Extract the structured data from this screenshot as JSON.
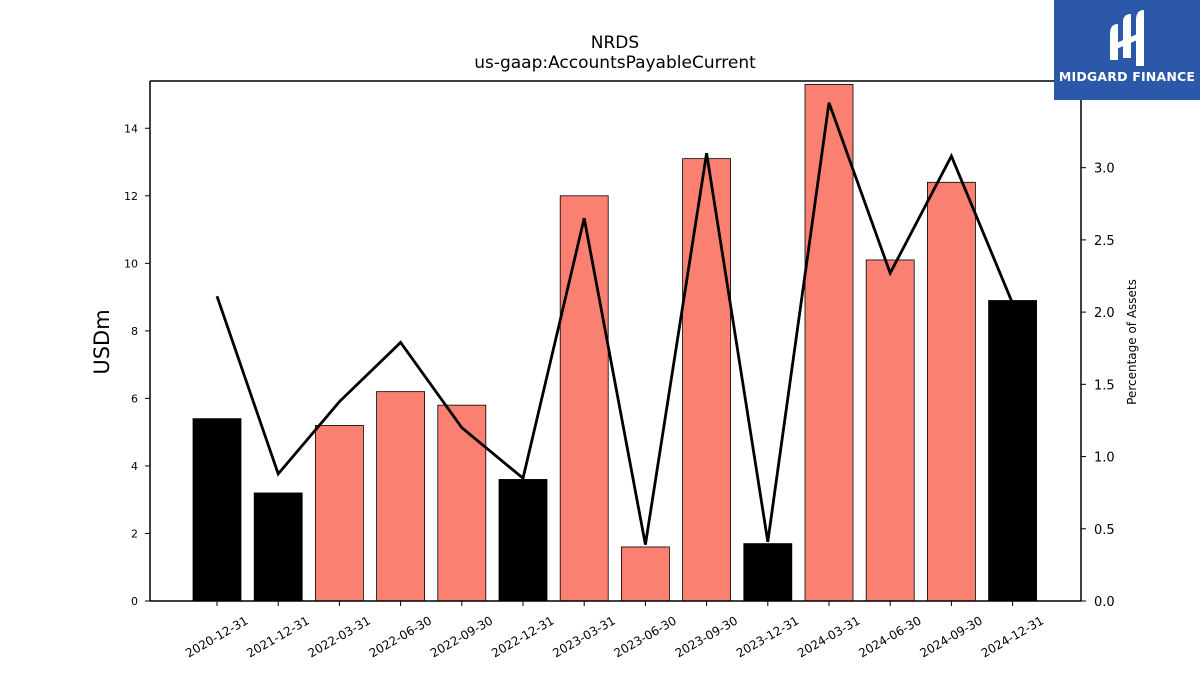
{
  "chart_data": {
    "type": "bar",
    "title": "NRDS",
    "subtitle": "us-gaap:AccountsPayableCurrent",
    "ylabel": "USDm",
    "y2label": "Percentage of Assets",
    "categories": [
      "2020-12-31",
      "2021-12-31",
      "2022-03-31",
      "2022-06-30",
      "2022-09-30",
      "2022-12-31",
      "2023-03-31",
      "2023-06-30",
      "2023-09-30",
      "2023-12-31",
      "2024-03-31",
      "2024-06-30",
      "2024-09-30",
      "2024-12-31"
    ],
    "series": [
      {
        "kind": "bar",
        "values": [
          5.4,
          3.2,
          5.2,
          6.2,
          5.8,
          3.6,
          12.0,
          1.6,
          13.1,
          1.7,
          15.3,
          10.1,
          12.4,
          8.9
        ],
        "colors": [
          "#000000",
          "#000000",
          "#fa8072",
          "#fa8072",
          "#fa8072",
          "#000000",
          "#fa8072",
          "#fa8072",
          "#fa8072",
          "#000000",
          "#fa8072",
          "#fa8072",
          "#fa8072",
          "#000000"
        ]
      },
      {
        "kind": "line",
        "axis": "right",
        "values": [
          2.11,
          0.88,
          1.38,
          1.79,
          1.2,
          0.85,
          2.65,
          0.39,
          3.1,
          0.41,
          3.45,
          2.27,
          3.08,
          2.06
        ],
        "color": "#000000"
      }
    ],
    "ylim": [
      0,
      15.4
    ],
    "y2lim": [
      0,
      3.6
    ],
    "yticks": [
      0,
      2,
      4,
      6,
      8,
      10,
      12,
      14
    ],
    "y2ticks": [
      "0.0",
      "0.5",
      "1.0",
      "1.5",
      "2.0",
      "2.5",
      "3.0"
    ],
    "grid": false,
    "legend": "none"
  },
  "logo": {
    "text": "MIDGARD FINANCE",
    "background": "#2b58a8"
  }
}
